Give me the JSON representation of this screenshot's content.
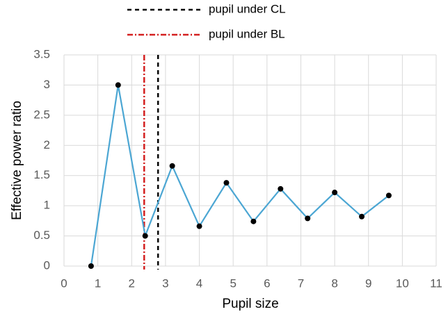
{
  "chart_data": {
    "type": "line",
    "xlabel": "Pupil size",
    "ylabel": "Effective power ratio",
    "x": [
      0.8,
      1.6,
      2.4,
      3.2,
      4,
      4.8,
      5.6,
      6.4,
      7.2,
      8,
      8.8,
      9.6
    ],
    "series": [
      {
        "color": "#4ba6d3",
        "marker_color": "#000000",
        "values": [
          0,
          3,
          0.5,
          1.66,
          0.66,
          1.38,
          0.74,
          1.28,
          0.79,
          1.22,
          0.82,
          1.17
        ]
      }
    ],
    "vlines": [
      {
        "name": "pupil under CL",
        "x": 2.78,
        "color": "#000000",
        "dash": "6 5"
      },
      {
        "name": "pupil under BL",
        "x": 2.37,
        "color": "#d42020",
        "dash": "8 3 2 3"
      }
    ],
    "xlim": [
      0,
      11
    ],
    "xticks": [
      0,
      1,
      2,
      3,
      4,
      5,
      6,
      7,
      8,
      9,
      10,
      11
    ],
    "ylim": [
      0,
      3.5
    ],
    "yticks": [
      0,
      0.5,
      1,
      1.5,
      2,
      2.5,
      3,
      3.5
    ],
    "grid": true
  }
}
